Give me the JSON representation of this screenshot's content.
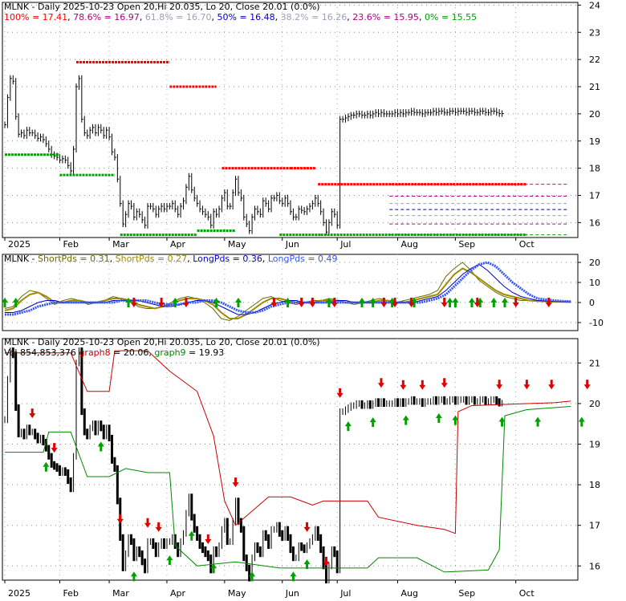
{
  "panels": {
    "price": {
      "title": "MLNK - Daily 2025-10-23 Open 20,Hi 20.035, Lo 20, Close 20.01 (0.0%)",
      "fib_legend": [
        {
          "label": "100% = 17.41",
          "color": "#ff0000"
        },
        {
          "label": ", ",
          "color": "#000000"
        },
        {
          "label": "78.6% = 16.97",
          "color": "#b00080"
        },
        {
          "label": ", ",
          "color": "#000000"
        },
        {
          "label": "61.8% = 16.70",
          "color": "#9aa0b8"
        },
        {
          "label": ", ",
          "color": "#000000"
        },
        {
          "label": "50% = 16.48",
          "color": "#0000cc"
        },
        {
          "label": ", ",
          "color": "#000000"
        },
        {
          "label": "38.2% = 16.26",
          "color": "#9aa0b8"
        },
        {
          "label": ", ",
          "color": "#000000"
        },
        {
          "label": "23.6% = 15.95",
          "color": "#b00080"
        },
        {
          "label": ", ",
          "color": "#000000"
        },
        {
          "label": "0% = 15.55",
          "color": "#00a000"
        }
      ]
    },
    "pds": {
      "legend": [
        {
          "label": "MLNK - ",
          "color": "#000000"
        },
        {
          "label": "ShortPds = 0.31",
          "color": "#6b6b00"
        },
        {
          "label": ", ",
          "color": "#000000"
        },
        {
          "label": "ShortPds = 0.27",
          "color": "#a08a00"
        },
        {
          "label": ", ",
          "color": "#000000"
        },
        {
          "label": "LongPds = 0.36",
          "color": "#0000cc"
        },
        {
          "label": ", ",
          "color": "#000000"
        },
        {
          "label": "LongPds = 0.49",
          "color": "#3355ff"
        }
      ]
    },
    "trend": {
      "title": "MLNK - Daily 2025-10-23 Open 20,Hi 20.035, Lo 20, Close 20.01 (0.0%)",
      "legend": [
        {
          "label": "Vol 854,853,376 ",
          "color": "#000000"
        },
        {
          "label": "graph8",
          "color": "#cc0000"
        },
        {
          "label": " = 20.06, ",
          "color": "#000000"
        },
        {
          "label": "graph9",
          "color": "#008800"
        },
        {
          "label": " = 19.93",
          "color": "#000000"
        }
      ]
    }
  },
  "x_axis": {
    "labels": [
      "2025",
      "Feb",
      "Mar",
      "Apr",
      "May",
      "Jun",
      "Jul",
      "Aug",
      "Sep",
      "Oct"
    ],
    "label_days": [
      0,
      20,
      38,
      59,
      80,
      101,
      121,
      143,
      164,
      186
    ]
  },
  "colors": {
    "up_arrow": "#00a000",
    "down_arrow": "#e00000",
    "graph8": "#cc0000",
    "graph9": "#008800",
    "pds_short1": "#6b6b00",
    "pds_short2": "#a08a00",
    "pds_long1": "#0000cc",
    "pds_long2": "#3355ff",
    "fib_100": "#ff0000",
    "fib_786": "#b00080",
    "fib_618": "#9aa0b8",
    "fib_50": "#0000cc",
    "fib_382": "#9aa0b8",
    "fib_236": "#b00080",
    "fib_0": "#00a000"
  },
  "chart_data": [
    {
      "type": "line",
      "panel": "price",
      "y_ticks": [
        16,
        17,
        18,
        19,
        20,
        21,
        22,
        23,
        24
      ],
      "ylim": [
        15.45,
        24.1
      ],
      "closes": [
        19.6,
        20.6,
        21.3,
        21.2,
        19.9,
        19.25,
        19.3,
        19.2,
        19.4,
        19.3,
        19.3,
        19.2,
        19.1,
        19.15,
        19.05,
        18.9,
        18.7,
        18.5,
        18.45,
        18.4,
        18.3,
        18.35,
        18.3,
        18.1,
        17.9,
        18.7,
        21.0,
        21.3,
        19.8,
        19.3,
        19.2,
        19.4,
        19.5,
        19.3,
        19.5,
        19.4,
        19.2,
        19.4,
        19.15,
        18.6,
        18.4,
        17.6,
        16.7,
        15.95,
        16.3,
        16.7,
        16.6,
        16.2,
        16.4,
        16.3,
        16.1,
        15.9,
        16.6,
        16.6,
        16.5,
        16.3,
        16.5,
        16.6,
        16.5,
        16.6,
        16.6,
        16.7,
        16.5,
        16.3,
        16.6,
        16.8,
        17.3,
        17.7,
        17.2,
        16.9,
        16.7,
        16.5,
        16.4,
        16.3,
        16.2,
        15.9,
        16.4,
        16.3,
        16.5,
        16.9,
        17.1,
        16.6,
        16.6,
        17.1,
        17.6,
        17.1,
        16.9,
        16.2,
        15.95,
        15.7,
        16.2,
        16.5,
        16.4,
        16.3,
        16.8,
        16.7,
        16.5,
        16.9,
        16.9,
        17.0,
        16.8,
        16.7,
        16.9,
        16.7,
        16.4,
        16.2,
        16.2,
        16.5,
        16.45,
        16.4,
        16.5,
        16.6,
        16.7,
        16.9,
        16.7,
        16.4,
        16.0,
        15.65,
        16.0,
        16.4,
        16.3,
        15.9,
        19.8,
        19.8,
        19.85,
        19.9,
        19.95,
        19.95,
        20.0,
        20.0,
        19.95,
        19.95,
        20.0,
        19.95,
        20.0,
        20.05,
        20.0,
        20.05,
        20.0,
        20.0,
        20.0,
        20.0,
        20.05,
        20.0,
        20.05,
        20.0,
        20.05,
        20.05,
        20.1,
        20.05,
        20.05,
        20.05,
        20.0,
        20.05,
        20.05,
        20.05,
        20.1,
        20.05,
        20.1,
        20.1,
        20.05,
        20.05,
        20.1,
        20.1,
        20.05,
        20.1,
        20.1,
        20.1,
        20.05,
        20.1,
        20.1,
        20.05,
        20.05,
        20.1,
        20.1,
        20.05,
        20.05,
        20.1,
        20.1,
        20.05,
        20.01,
        20.01
      ],
      "resistance_segments": [
        [
          26,
          60,
          21.9
        ],
        [
          60,
          77,
          21.0
        ],
        [
          79,
          104,
          18.0
        ],
        [
          104,
          113,
          18.0
        ],
        [
          114,
          190,
          17.41
        ]
      ],
      "support_segments": [
        [
          0,
          20,
          18.5
        ],
        [
          20,
          40,
          17.75
        ],
        [
          42,
          70,
          15.55
        ],
        [
          70,
          84,
          15.7
        ],
        [
          100,
          115,
          15.55
        ],
        [
          115,
          190,
          15.55
        ]
      ],
      "fib_levels": [
        17.41,
        16.97,
        16.7,
        16.48,
        16.26,
        15.95,
        15.55
      ]
    },
    {
      "type": "line",
      "panel": "pds",
      "y_ticks": [
        -10,
        0,
        10,
        20
      ],
      "ylim": [
        -14,
        24
      ],
      "series": [
        {
          "name": "ShortPds",
          "values": [
            -3,
            -2,
            3,
            6,
            5,
            2,
            -1,
            1,
            2,
            1,
            -1,
            0,
            1,
            3,
            2,
            1,
            -2,
            -3,
            -3,
            -2,
            0,
            2,
            3,
            2,
            0,
            -3,
            -8,
            -9,
            -7,
            -4,
            -1,
            2,
            3,
            1,
            0,
            -1,
            0,
            1,
            1,
            2,
            1,
            0,
            -1,
            0,
            1,
            2,
            1,
            0,
            1,
            2,
            3,
            4,
            6,
            13,
            17,
            20,
            16,
            11,
            8,
            5,
            3,
            2,
            1,
            1,
            0.5,
            0.4,
            0.3,
            0.3,
            0.31
          ]
        },
        {
          "name": "ShortPds",
          "values": [
            -4,
            -3,
            1,
            4,
            5,
            3,
            0,
            0,
            1,
            1,
            0,
            0,
            1,
            2,
            2,
            1,
            -1,
            -2,
            -3,
            -2,
            -1,
            1,
            2,
            2,
            1,
            -1,
            -5,
            -8,
            -8,
            -6,
            -3,
            0,
            2,
            2,
            1,
            0,
            0,
            0,
            1,
            1,
            1,
            0,
            0,
            0,
            0,
            1,
            1,
            0,
            0,
            1,
            2,
            3,
            4,
            9,
            14,
            17,
            15,
            12,
            9,
            6,
            4,
            3,
            2,
            1,
            0.8,
            0.5,
            0.4,
            0.3,
            0.27
          ]
        },
        {
          "name": "LongPds",
          "values": [
            -5,
            -5,
            -4,
            -2,
            0,
            1,
            1,
            0,
            0,
            0,
            0,
            0,
            0,
            1,
            1,
            1,
            1,
            0,
            -1,
            -2,
            -2,
            -1,
            0,
            1,
            1,
            0,
            -2,
            -4,
            -6,
            -6,
            -5,
            -3,
            -1,
            0,
            1,
            1,
            0,
            0,
            0,
            0,
            1,
            1,
            0,
            0,
            0,
            0,
            0,
            0,
            0,
            0,
            1,
            2,
            3,
            6,
            10,
            14,
            17,
            19,
            16,
            12,
            8,
            5,
            3,
            2,
            1,
            0.8,
            0.5,
            0.4,
            0.36
          ]
        },
        {
          "name": "LongPds",
          "values": [
            -6,
            -6,
            -5,
            -4,
            -2,
            -1,
            0,
            0,
            0,
            0,
            0,
            0,
            0,
            0,
            1,
            1,
            1,
            1,
            0,
            -1,
            -1,
            -1,
            0,
            0,
            1,
            1,
            0,
            -2,
            -4,
            -5,
            -5,
            -4,
            -2,
            -1,
            0,
            0,
            0,
            0,
            0,
            0,
            0,
            0,
            0,
            0,
            0,
            0,
            0,
            0,
            0,
            0,
            0,
            1,
            2,
            4,
            8,
            12,
            16,
            19,
            20,
            18,
            14,
            10,
            7,
            4,
            2,
            1.5,
            1,
            0.7,
            0.49
          ]
        }
      ],
      "up_arrow_days": [
        0,
        4,
        45,
        62,
        77,
        85,
        103,
        118,
        130,
        134,
        141,
        149,
        162,
        164,
        170,
        173,
        178,
        182
      ],
      "down_arrow_days": [
        47,
        57,
        66,
        98,
        108,
        112,
        120,
        138,
        142,
        148,
        160,
        172,
        186,
        198
      ]
    },
    {
      "type": "line",
      "panel": "trend",
      "y_ticks": [
        16,
        17,
        18,
        19,
        20,
        21
      ],
      "ylim": [
        15.65,
        21.6
      ],
      "series": [
        {
          "name": "graph8",
          "points": [
            [
              0,
              21.25
            ],
            [
              12,
              21.25
            ],
            [
              24,
              21.25
            ],
            [
              30,
              20.3
            ],
            [
              38,
              20.3
            ],
            [
              40,
              21.3
            ],
            [
              52,
              21.3
            ],
            [
              60,
              20.8
            ],
            [
              70,
              20.3
            ],
            [
              76,
              19.2
            ],
            [
              80,
              17.6
            ],
            [
              84,
              17.0
            ],
            [
              96,
              17.7
            ],
            [
              104,
              17.7
            ],
            [
              112,
              17.5
            ],
            [
              116,
              17.6
            ],
            [
              132,
              17.6
            ],
            [
              136,
              17.2
            ],
            [
              150,
              17.0
            ],
            [
              160,
              16.9
            ],
            [
              164,
              16.8
            ],
            [
              165,
              19.8
            ],
            [
              170,
              19.95
            ],
            [
              190,
              20.0
            ],
            [
              200,
              20.02
            ],
            [
              206,
              20.06
            ]
          ]
        },
        {
          "name": "graph9",
          "points": [
            [
              0,
              18.8
            ],
            [
              14,
              18.8
            ],
            [
              16,
              19.3
            ],
            [
              24,
              19.3
            ],
            [
              30,
              18.2
            ],
            [
              38,
              18.2
            ],
            [
              44,
              18.4
            ],
            [
              52,
              18.3
            ],
            [
              60,
              18.3
            ],
            [
              62,
              16.5
            ],
            [
              70,
              16.0
            ],
            [
              84,
              16.1
            ],
            [
              100,
              15.95
            ],
            [
              116,
              15.95
            ],
            [
              132,
              15.95
            ],
            [
              136,
              16.2
            ],
            [
              150,
              16.2
            ],
            [
              160,
              15.85
            ],
            [
              176,
              15.9
            ],
            [
              180,
              16.4
            ],
            [
              182,
              19.7
            ],
            [
              190,
              19.85
            ],
            [
              200,
              19.9
            ],
            [
              206,
              19.93
            ]
          ]
        }
      ],
      "up_arrow_days": [
        15,
        35,
        47,
        60,
        68,
        76,
        90,
        105,
        110,
        125,
        134,
        146,
        158,
        164,
        181,
        194,
        210
      ],
      "down_arrow_days": [
        10,
        18,
        42,
        52,
        56,
        74,
        84,
        110,
        117,
        122,
        137,
        145,
        152,
        160,
        180,
        190,
        199,
        212
      ]
    }
  ]
}
